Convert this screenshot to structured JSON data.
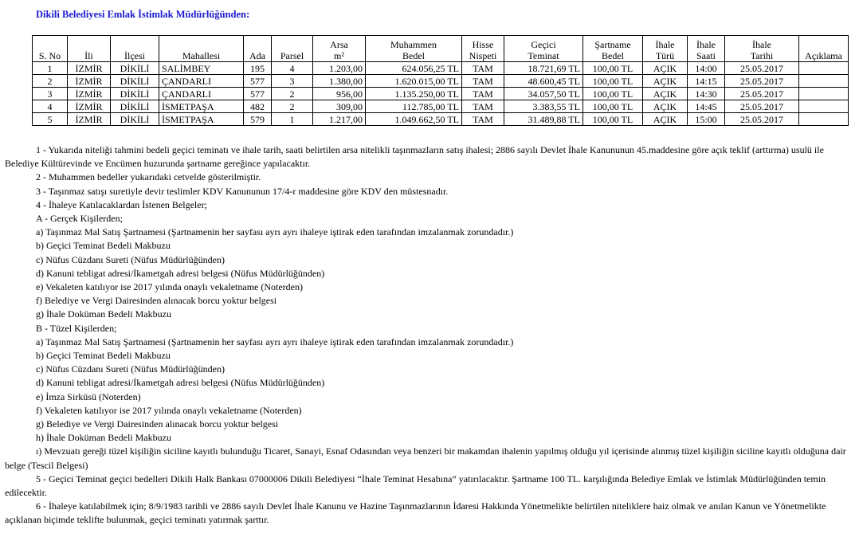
{
  "title": "Dikili Belediyesi Emlak İstimlak Müdürlüğünden:",
  "table": {
    "headers": [
      [
        "S. No"
      ],
      [
        "İli"
      ],
      [
        "İlçesi"
      ],
      [
        "Mahallesi"
      ],
      [
        "Ada"
      ],
      [
        "Parsel"
      ],
      [
        "Arsa",
        "m²"
      ],
      [
        "Muhammen",
        "Bedel"
      ],
      [
        "Hisse",
        "Nispeti"
      ],
      [
        "Geçici",
        "Teminat"
      ],
      [
        "Şartname",
        "Bedel"
      ],
      [
        "İhale",
        "Türü"
      ],
      [
        "İhale",
        "Saati"
      ],
      [
        "İhale",
        "Tarihi"
      ],
      [
        "Açıklama"
      ]
    ],
    "rows": [
      [
        "1",
        "İZMİR",
        "DİKİLİ",
        "SALİMBEY",
        "195",
        "4",
        "1.203,00",
        "624.056,25 TL",
        "TAM",
        "18.721,69 TL",
        "100,00 TL",
        "AÇIK",
        "14:00",
        "25.05.2017"
      ],
      [
        "2",
        "İZMİR",
        "DİKİLİ",
        "ÇANDARLI",
        "577",
        "3",
        "1.380,00",
        "1.620.015,00 TL",
        "TAM",
        "48.600,45 TL",
        "100,00 TL",
        "AÇIK",
        "14:15",
        "25.05.2017"
      ],
      [
        "3",
        "İZMİR",
        "DİKİLİ",
        "ÇANDARLI",
        "577",
        "2",
        "956,00",
        "1.135.250,00 TL",
        "TAM",
        "34.057,50 TL",
        "100,00 TL",
        "AÇIK",
        "14:30",
        "25.05.2017"
      ],
      [
        "4",
        "İZMİR",
        "DİKİLİ",
        "İSMETPAŞA",
        "482",
        "2",
        "309,00",
        "112.785,00 TL",
        "TAM",
        "3.383,55 TL",
        "100,00 TL",
        "AÇIK",
        "14:45",
        "25.05.2017"
      ],
      [
        "5",
        "İZMİR",
        "DİKİLİ",
        "İSMETPAŞA",
        "579",
        "1",
        "1.217,00",
        "1.049.662,50 TL",
        "TAM",
        "31.489,88 TL",
        "100,00 TL",
        "AÇIK",
        "15:00",
        "25.05.2017"
      ]
    ]
  },
  "paragraphs": [
    "1 - Yukarıda niteliği tahmini bedeli geçici teminatı ve ihale tarih, saati belirtilen arsa nitelikli taşınmazların satış ihalesi; 2886 sayılı Devlet İhale Kanununun 45.maddesine göre açık teklif (arttırma) usulü ile Belediye Kültürevinde ve Encümen huzurunda şartname gereğince yapılacaktır.",
    "2 - Muhammen bedeller yukarıdaki cetvelde gösterilmiştir.",
    "3 - Taşınmaz satışı suretiyle devir teslimler KDV Kanununun 17/4-r maddesine göre KDV den müstesnadır.",
    "4 - İhaleye Katılacaklardan İstenen Belgeler;",
    "A - Gerçek Kişilerden;",
    "a) Taşınmaz Mal Satış Şartnamesi (Şartnamenin her sayfası ayrı ayrı ihaleye iştirak eden tarafından imzalanmak zorundadır.)",
    "b) Geçici Teminat Bedeli Makbuzu",
    "c) Nüfus Cüzdanı Sureti (Nüfus Müdürlüğünden)",
    "d) Kanuni tebligat adresi/İkametgah adresi belgesi (Nüfus Müdürlüğünden)",
    "e) Vekaleten katılıyor ise 2017 yılında onaylı vekaletname (Noterden)",
    "f) Belediye ve Vergi Dairesinden alınacak borcu yoktur belgesi",
    "g) İhale Doküman Bedeli Makbuzu",
    "B - Tüzel Kişilerden;",
    "a) Taşınmaz Mal Satış Şartnamesi (Şartnamenin her sayfası ayrı ayrı ihaleye iştirak eden tarafından imzalanmak zorundadır.)",
    "b) Geçici Teminat Bedeli Makbuzu",
    "c) Nüfus Cüzdanı Sureti (Nüfus Müdürlüğünden)",
    "d) Kanuni tebligat adresi/İkametgah adresi belgesi (Nüfus Müdürlüğünden)",
    "e) İmza Sirküsü (Noterden)",
    "f) Vekaleten katılıyor ise 2017 yılında onaylı vekaletname (Noterden)",
    "g) Belediye ve Vergi Dairesinden alınacak borcu yoktur belgesi",
    "h) İhale Doküman Bedeli Makbuzu",
    "ı) Mevzuatı gereği tüzel kişiliğin siciline kayıtlı bulunduğu Ticaret, Sanayi, Esnaf Odasından veya benzeri bir makamdan ihalenin yapılmış olduğu yıl içerisinde alınmış tüzel kişiliğin siciline kayıtlı olduğuna dair belge (Tescil Belgesi)",
    "5 - Geçici Teminat geçici bedelleri Dikili Halk Bankası 07000006 Dikili Belediyesi “İhale Teminat Hesabına” yatırılacaktır. Şartname 100 TL. karşılığında Belediye Emlak ve İstimlak Müdürlüğünden temin edilecektir.",
    "6 - İhaleye katılabilmek için; 8/9/1983 tarihli ve 2886 sayılı Devlet İhale Kanunu ve Hazine Taşınmazlarının İdaresi Hakkında Yönetmelikte belirtilen niteliklere haiz olmak ve anılan Kanun ve Yönetmelikte açıklanan biçimde teklifte bulunmak, geçici teminatı yatırmak şarttır."
  ]
}
